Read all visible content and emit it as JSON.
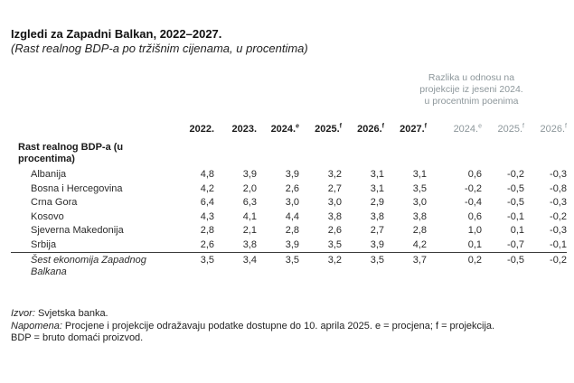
{
  "title": "Izgledi za Zapadni Balkan, 2022–2027.",
  "subtitle": "(Rast realnog BDP-a po tržišnim cijenama, u procentima)",
  "colors": {
    "text": "#1d1d1d",
    "muted_header": "#8d979b",
    "rule": "#3c3c3c",
    "background": "#ffffff"
  },
  "table": {
    "diff_header": [
      "Razlika u odnosu na",
      "projekcije iz jeseni 2024.",
      "u procentnim poenima"
    ],
    "group_label": "Rast realnog BDP-a (u procentima)",
    "columns": [
      {
        "label": "2022.",
        "sup": ""
      },
      {
        "label": "2023.",
        "sup": ""
      },
      {
        "label": "2024.",
        "sup": "e"
      },
      {
        "label": "2025.",
        "sup": "f"
      },
      {
        "label": "2026.",
        "sup": "f"
      },
      {
        "label": "2027.",
        "sup": "f"
      }
    ],
    "diff_columns": [
      {
        "label": "2024.",
        "sup": "e"
      },
      {
        "label": "2025.",
        "sup": "f"
      },
      {
        "label": "2026.",
        "sup": "f"
      }
    ],
    "rows": [
      {
        "name": "Albanija",
        "values": [
          "4,8",
          "3,9",
          "3,9",
          "3,2",
          "3,1",
          "3,1"
        ],
        "diff": [
          "0,6",
          "-0,2",
          "-0,3"
        ]
      },
      {
        "name": "Bosna i Hercegovina",
        "values": [
          "4,2",
          "2,0",
          "2,6",
          "2,7",
          "3,1",
          "3,5"
        ],
        "diff": [
          "-0,2",
          "-0,5",
          "-0,8"
        ]
      },
      {
        "name": "Crna Gora",
        "values": [
          "6,4",
          "6,3",
          "3,0",
          "3,0",
          "2,9",
          "3,0"
        ],
        "diff": [
          "-0,4",
          "-0,5",
          "-0,3"
        ]
      },
      {
        "name": "Kosovo",
        "values": [
          "4,3",
          "4,1",
          "4,4",
          "3,8",
          "3,8",
          "3,8"
        ],
        "diff": [
          "0,6",
          "-0,1",
          "-0,2"
        ]
      },
      {
        "name": "Sjeverna Makedonija",
        "values": [
          "2,8",
          "2,1",
          "2,8",
          "2,6",
          "2,7",
          "2,8"
        ],
        "diff": [
          "1,0",
          "0,1",
          "-0,3"
        ]
      },
      {
        "name": "Srbija",
        "values": [
          "2,6",
          "3,8",
          "3,9",
          "3,5",
          "3,9",
          "4,2"
        ],
        "diff": [
          "0,1",
          "-0,7",
          "-0,1"
        ]
      }
    ],
    "total_row": {
      "name": "Šest ekonomija Zapadnog Balkana",
      "values": [
        "3,5",
        "3,4",
        "3,5",
        "3,2",
        "3,5",
        "3,7"
      ],
      "diff": [
        "0,2",
        "-0,5",
        "-0,2"
      ]
    }
  },
  "footer": {
    "source_label": "Izvor:",
    "source_text": " Svjetska banka.",
    "note_label": "Napomena:",
    "note_text": " Procjene i projekcije odražavaju podatke dostupne do 10. aprila 2025. e = procjena; f = projekcija.",
    "bdp_note": "BDP = bruto domaći proizvod."
  }
}
